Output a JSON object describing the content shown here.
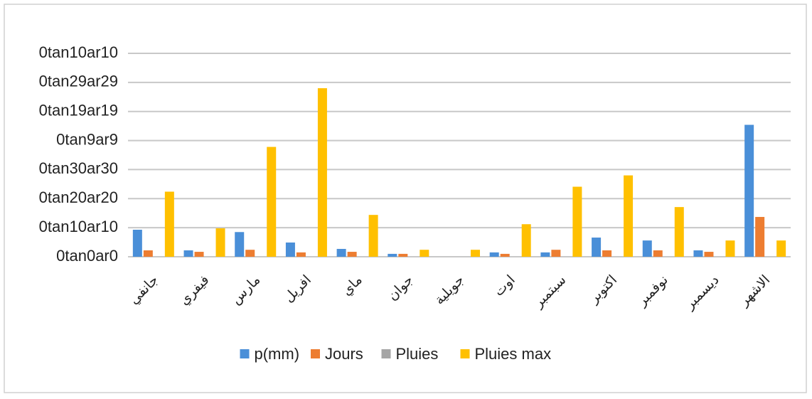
{
  "chart_data": {
    "type": "bar",
    "categories": [
      "جانفي",
      "فيفري",
      "مارس",
      "افريل",
      "ماي",
      "جوان",
      "جويلية",
      "اوت",
      "سبتمبر",
      "اكتوبر",
      "نوفمبر",
      "ديسمبر",
      "الاشهر"
    ],
    "series": [
      {
        "name": "p(mm)",
        "color": "#4a8fd8",
        "values": [
          0.93,
          0.22,
          0.85,
          0.49,
          0.27,
          0.1,
          0,
          0.15,
          0.15,
          0.66,
          0.56,
          0.22,
          4.54
        ]
      },
      {
        "name": "Jours",
        "color": "#ed7d31",
        "values": [
          0.22,
          0.17,
          0.24,
          0.15,
          0.17,
          0.1,
          0,
          0.1,
          0.24,
          0.22,
          0.22,
          0.17,
          1.37
        ]
      },
      {
        "name": "Pluies",
        "color": "#a5a5a5",
        "values": [
          0,
          0,
          0,
          0,
          0,
          0,
          0,
          0,
          0,
          0,
          0,
          0,
          0
        ]
      },
      {
        "name": "Pluies max",
        "color": "#ffc000",
        "values": [
          2.24,
          0.98,
          3.78,
          5.8,
          1.44,
          0.24,
          0.24,
          1.12,
          2.41,
          2.8,
          1.71,
          0.56,
          0.56
        ]
      }
    ],
    "ylim": [
      0,
      7
    ],
    "yticks": [
      {
        "value": 0,
        "label": "0tan0ar0"
      },
      {
        "value": 1,
        "label": "0tan10ar10"
      },
      {
        "value": 2,
        "label": "0tan20ar20"
      },
      {
        "value": 3,
        "label": "0tan30ar30"
      },
      {
        "value": 4,
        "label": "0tan9ar9"
      },
      {
        "value": 5,
        "label": "0tan19ar19"
      },
      {
        "value": 6,
        "label": "0tan29ar29"
      },
      {
        "value": 7,
        "label": "0tan10ar10"
      }
    ],
    "grid": true,
    "legend": "bottom"
  }
}
